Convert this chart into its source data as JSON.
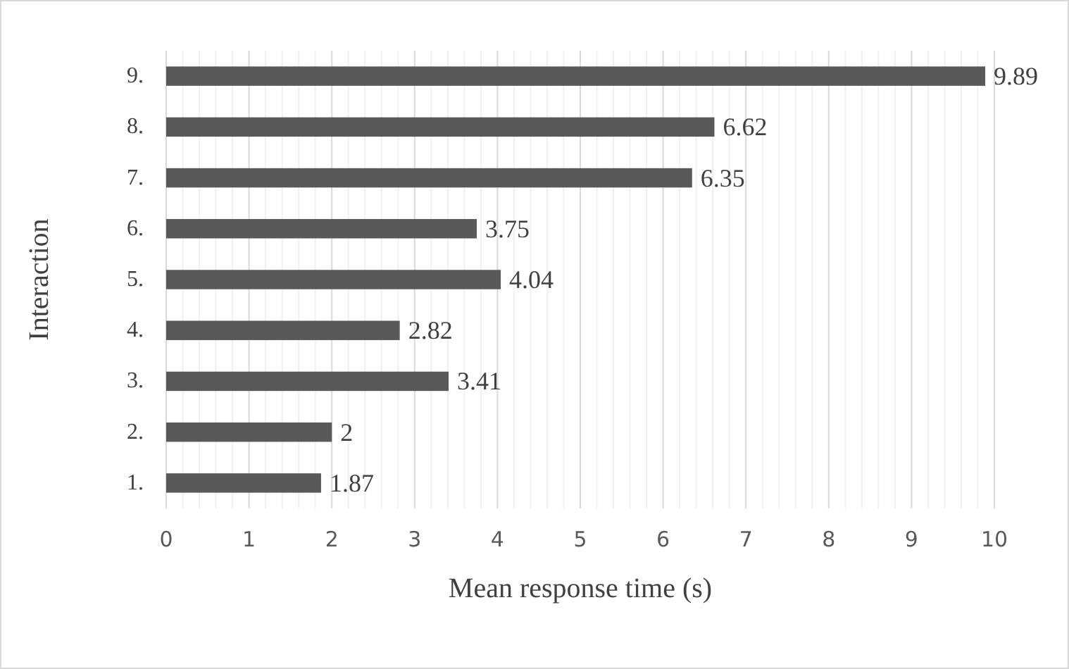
{
  "chart_data": {
    "type": "bar",
    "orientation": "horizontal",
    "xlabel": "Mean response time (s)",
    "ylabel": "Interaction",
    "categories": [
      "9.",
      "8.",
      "7.",
      "6.",
      "5.",
      "4.",
      "3.",
      "2.",
      "1."
    ],
    "values": [
      9.89,
      6.62,
      6.35,
      3.75,
      4.04,
      2.82,
      3.41,
      2,
      1.87
    ],
    "color": "#595959",
    "xlim": [
      0,
      10
    ],
    "xticks": [
      0,
      1,
      2,
      3,
      4,
      5,
      6,
      7,
      8,
      9,
      10
    ],
    "grid": "x",
    "data_labels": true
  }
}
